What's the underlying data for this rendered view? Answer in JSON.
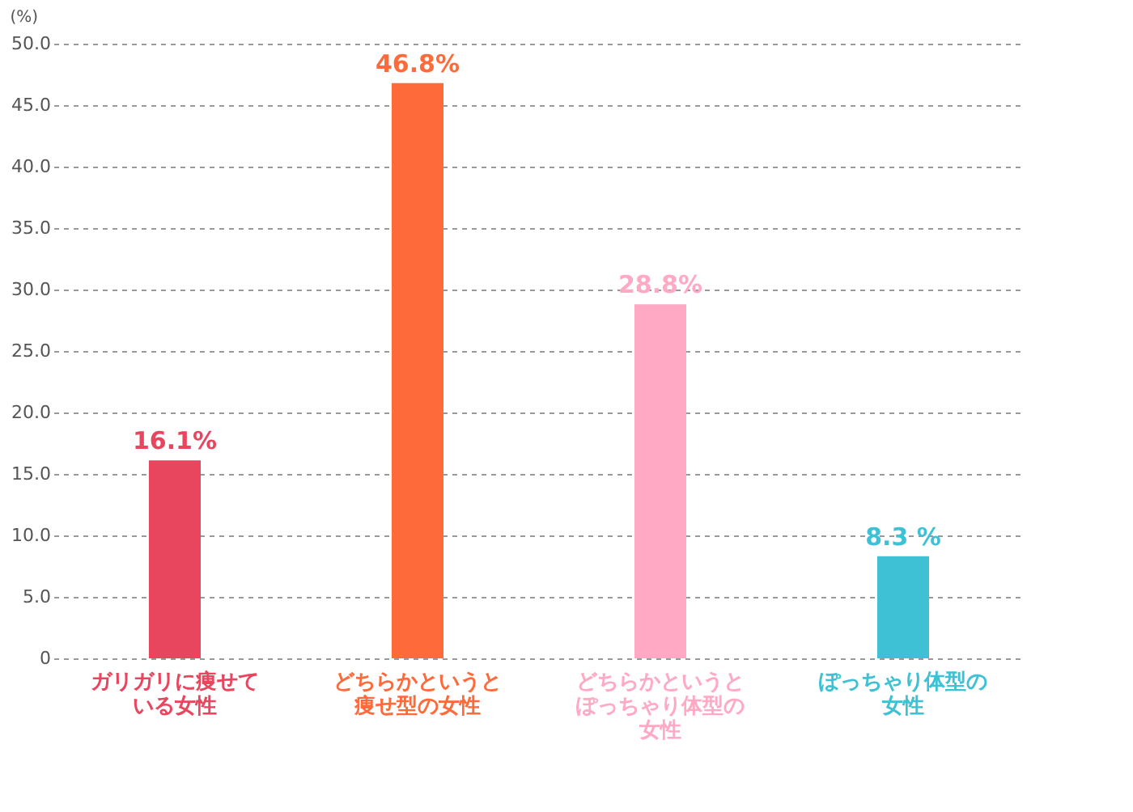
{
  "chart_data": {
    "type": "bar",
    "ylabel": "(%)",
    "categories": [
      "ガリガリに痩せている女性",
      "どちらかというと痩せ型の女性",
      "どちらかというとぽっちゃり体型の女性",
      "ぽっちゃり体型の女性"
    ],
    "values": [
      16.1,
      46.8,
      28.8,
      8.3
    ],
    "colors": [
      "#e8455e",
      "#ff6a3a",
      "#ffa9c4",
      "#3ec1d4"
    ],
    "value_labels": [
      "16.1%",
      "46.8%",
      "28.8%",
      "8.3 %"
    ],
    "ylim": [
      0,
      50
    ],
    "yticks": [
      0,
      {
        "value": 5,
        "label": "5.0"
      },
      {
        "value": 10,
        "label": "10.0"
      },
      {
        "value": 15,
        "label": "15.0"
      },
      {
        "value": 20,
        "label": "20.0"
      },
      {
        "value": 25,
        "label": "25.0"
      },
      {
        "value": 30,
        "label": "30.0"
      },
      {
        "value": 35,
        "label": "35.0"
      },
      {
        "value": 40,
        "label": "40.0"
      },
      {
        "value": 45,
        "label": "45.0"
      },
      {
        "value": 50,
        "label": "50.0"
      }
    ],
    "grid": "y"
  }
}
